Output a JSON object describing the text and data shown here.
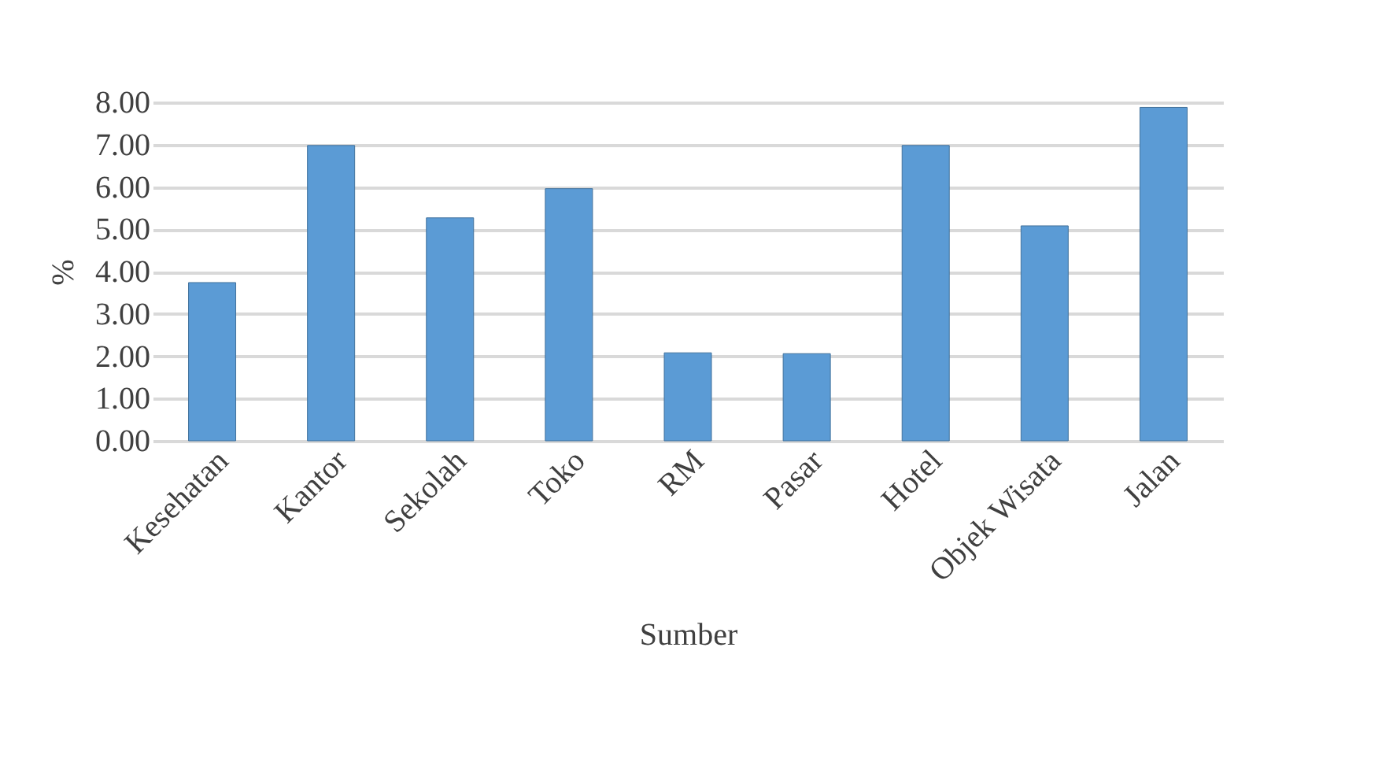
{
  "chart_data": {
    "type": "bar",
    "xlabel": "Sumber",
    "ylabel": "%",
    "categories": [
      "Kesehatan",
      "Kantor",
      "Sekolah",
      "Toko",
      "RM",
      "Pasar",
      "Hotel",
      "Objek Wisata",
      "Jalan"
    ],
    "values": [
      3.74,
      6.98,
      5.27,
      5.96,
      2.08,
      2.06,
      6.98,
      5.08,
      7.88
    ],
    "color": "#5b9bd5",
    "ylim": [
      0,
      8
    ],
    "yticks": [
      {
        "value": 0,
        "label": "0.00"
      },
      {
        "value": 1,
        "label": "1.00"
      },
      {
        "value": 2,
        "label": "2.00"
      },
      {
        "value": 3,
        "label": "3.00"
      },
      {
        "value": 4,
        "label": "4.00"
      },
      {
        "value": 5,
        "label": "5.00"
      },
      {
        "value": 6,
        "label": "6.00"
      },
      {
        "value": 7,
        "label": "7.00"
      },
      {
        "value": 8,
        "label": "8.00"
      }
    ],
    "grid": "y"
  }
}
